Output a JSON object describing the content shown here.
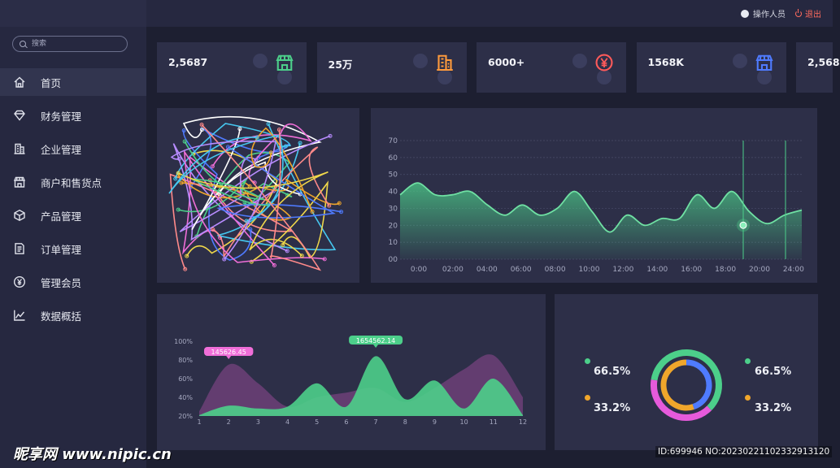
{
  "header": {
    "operator_label": "操作人员",
    "logout_label": "退出"
  },
  "sidebar": {
    "search_placeholder": "搜索",
    "items": [
      {
        "label": "首页",
        "icon": "home-icon",
        "active": true
      },
      {
        "label": "财务管理",
        "icon": "diamond-icon",
        "active": false
      },
      {
        "label": "企业管理",
        "icon": "building-icon",
        "active": false
      },
      {
        "label": "商户和售货点",
        "icon": "store-icon",
        "active": false
      },
      {
        "label": "产品管理",
        "icon": "cube-icon",
        "active": false
      },
      {
        "label": "订单管理",
        "icon": "document-icon",
        "active": false
      },
      {
        "label": "管理会员",
        "icon": "yen-icon",
        "active": false
      },
      {
        "label": "数据概括",
        "icon": "line-chart-icon",
        "active": false
      }
    ]
  },
  "stats": [
    {
      "value": "2,5687",
      "icon": "store-icon",
      "color": "#4ccf8a"
    },
    {
      "value": "25万",
      "icon": "building-icon",
      "color": "#ff9a3c"
    },
    {
      "value": "6000+",
      "icon": "yen-icon",
      "color": "#ff5a5a"
    },
    {
      "value": "1568K",
      "icon": "store-icon",
      "color": "#4f7bff"
    },
    {
      "value": "2,568",
      "icon": "store-icon",
      "color": "#4ccf8a"
    }
  ],
  "line_chart": {
    "chart_data": {
      "type": "area",
      "x_ticks": [
        "0:00",
        "02:00",
        "04:00",
        "06:00",
        "08:00",
        "10:00",
        "12:00",
        "14:00",
        "16:00",
        "18:00",
        "20:00",
        "24:00"
      ],
      "y_ticks": [
        "00",
        "10",
        "20",
        "30",
        "40",
        "50",
        "60",
        "70"
      ],
      "ylim": [
        0,
        70
      ],
      "x": [
        0,
        1,
        2,
        3,
        4,
        5,
        6,
        7,
        8,
        9,
        10,
        11,
        12,
        13,
        14,
        15,
        16,
        17,
        18,
        19,
        20,
        21,
        22,
        23
      ],
      "values": [
        38,
        45,
        38,
        38,
        40,
        32,
        26,
        32,
        26,
        30,
        40,
        28,
        16,
        26,
        20,
        24,
        24,
        38,
        30,
        40,
        28,
        21,
        26,
        29
      ],
      "highlight_index": 21,
      "color": "#4ccf8a"
    }
  },
  "area_chart": {
    "chart_data": {
      "type": "area",
      "x_ticks": [
        "1",
        "2",
        "3",
        "4",
        "5",
        "6",
        "7",
        "8",
        "9",
        "10",
        "11",
        "12"
      ],
      "y_ticks": [
        "20%",
        "40%",
        "60%",
        "80%",
        "100%"
      ],
      "ylim": [
        20,
        100
      ],
      "series": [
        {
          "color": "#4ccf8a",
          "values": [
            21,
            31,
            28,
            30,
            55,
            30,
            84,
            38,
            58,
            28,
            60,
            21
          ]
        },
        {
          "color": "#6d3f78",
          "values": [
            25,
            75,
            55,
            30,
            40,
            45,
            50,
            35,
            50,
            70,
            85,
            40
          ]
        }
      ],
      "tooltips": [
        {
          "label": "145626.45",
          "x_index": 1,
          "color": "#f06ed8"
        },
        {
          "label": "1654562.14",
          "x_index": 6,
          "color": "#4ccf8a"
        }
      ]
    }
  },
  "donut": {
    "left": [
      {
        "value": "66.5%",
        "color": "#4ccf8a"
      },
      {
        "value": "33.2%",
        "color": "#f0a62b"
      }
    ],
    "right": [
      {
        "value": "66.5%",
        "color": "#4ccf8a"
      },
      {
        "value": "33.2%",
        "color": "#f0a62b"
      }
    ],
    "chart_data": {
      "type": "pie",
      "outer": [
        {
          "value": 60,
          "color": "#4ccf8a"
        },
        {
          "value": 40,
          "color": "#e65adb"
        }
      ],
      "inner": [
        {
          "value": 45,
          "color": "#4f7bff"
        },
        {
          "value": 55,
          "color": "#f0a62b"
        }
      ]
    }
  },
  "watermark": {
    "site_logo": "昵享网 www.nipic.cn",
    "id_text": "ID:699946 NO:20230221102332913120"
  }
}
